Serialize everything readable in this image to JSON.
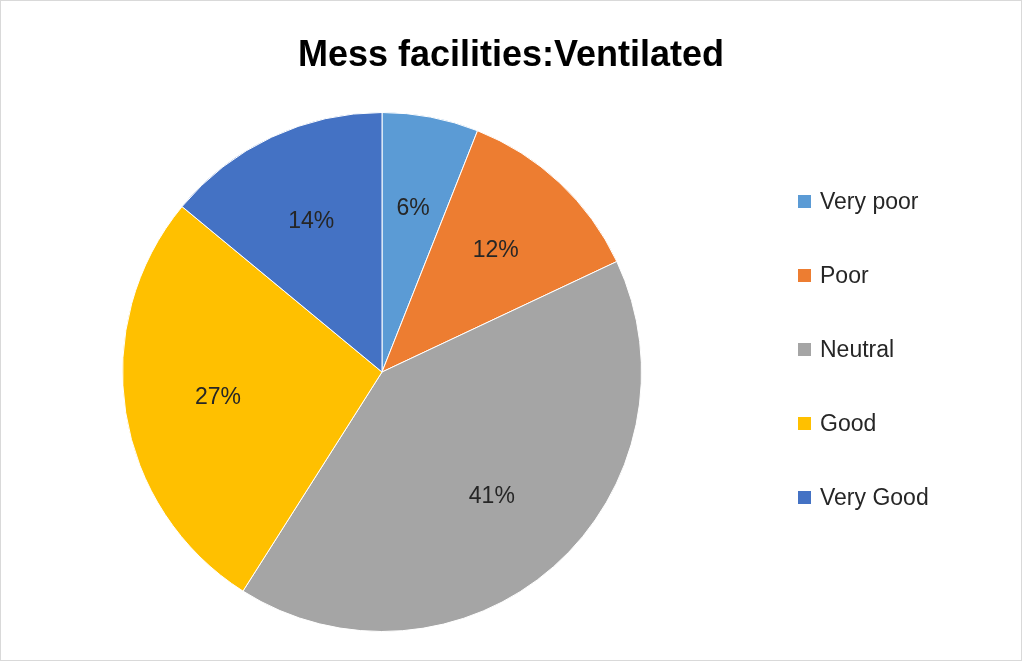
{
  "chart_data": {
    "type": "pie",
    "title": "Mess facilities:Ventilated",
    "categories": [
      "Very poor",
      "Poor",
      "Neutral",
      "Good",
      "Very Good"
    ],
    "values": [
      6,
      12,
      41,
      27,
      14
    ],
    "colors": [
      "#5b9bd5",
      "#ed7d31",
      "#a5a5a5",
      "#ffc000",
      "#4472c4"
    ],
    "value_labels": [
      "6%",
      "12%",
      "41%",
      "27%",
      "14%"
    ],
    "legend": "right"
  }
}
